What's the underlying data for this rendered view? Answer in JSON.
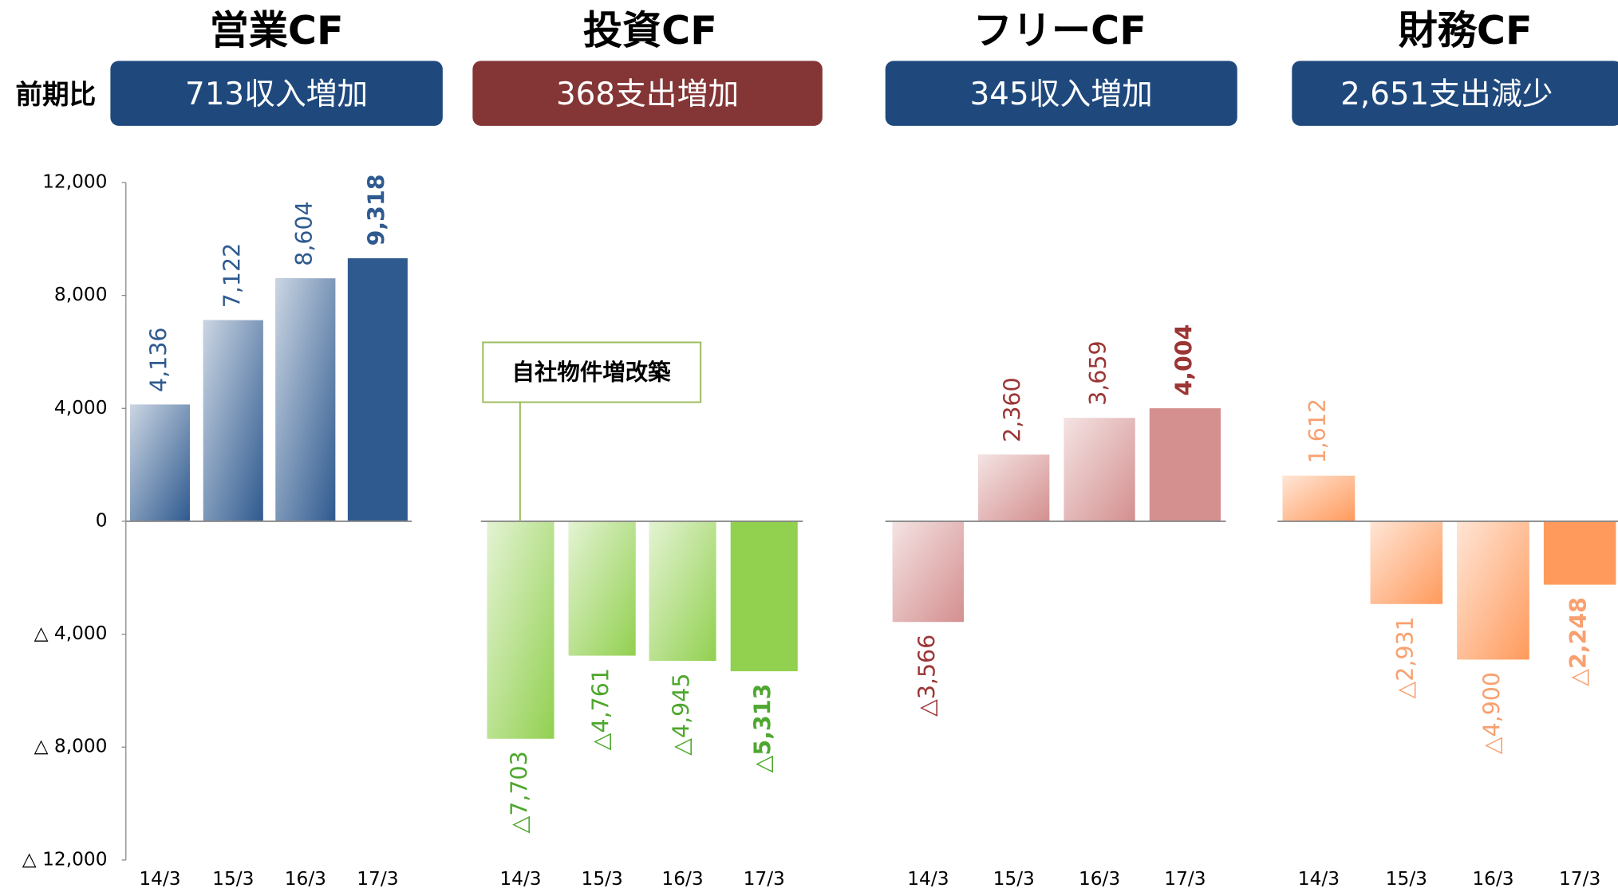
{
  "side_label": "前期比",
  "chart_data": [
    {
      "type": "bar",
      "title": "営業CF",
      "subtitle": "713収入増加",
      "categories": [
        "14/3",
        "15/3",
        "16/3",
        "17/3"
      ],
      "values": [
        4136,
        7122,
        8604,
        9318
      ],
      "value_labels": [
        "4,136",
        "7,122",
        "8,604",
        "9,318"
      ],
      "color": "#2f5a8f",
      "ylim": [
        -12000,
        12000
      ],
      "yticks": [
        {
          "value": 12000,
          "label": "12,000"
        },
        {
          "value": 8000,
          "label": "8,000"
        },
        {
          "value": 4000,
          "label": "4,000"
        },
        0,
        {
          "value": -4000,
          "label": "△ 4,000"
        },
        {
          "value": -8000,
          "label": "△ 8,000"
        },
        {
          "value": -12000,
          "label": "△ 12,000"
        }
      ]
    },
    {
      "type": "bar",
      "title": "投資CF",
      "subtitle": "368支出増加",
      "categories": [
        "14/3",
        "15/3",
        "16/3",
        "17/3"
      ],
      "values": [
        -7703,
        -4761,
        -4945,
        -5313
      ],
      "value_labels": [
        "△7,703",
        "△4,761",
        "△4,945",
        "△5,313"
      ],
      "color": "#92d050",
      "annotation": "自社物件増改築"
    },
    {
      "type": "bar",
      "title": "フリーCF",
      "subtitle": "345収入増加",
      "categories": [
        "14/3",
        "15/3",
        "16/3",
        "17/3"
      ],
      "values": [
        -3566,
        2360,
        3659,
        4004
      ],
      "value_labels": [
        "△3,566",
        "2,360",
        "3,659",
        "4,004"
      ],
      "color": "#d48f8f"
    },
    {
      "type": "bar",
      "title": "財務CF",
      "subtitle": "2,651支出減少",
      "categories": [
        "14/3",
        "15/3",
        "16/3",
        "17/3"
      ],
      "values": [
        1612,
        -2931,
        -4900,
        -2248
      ],
      "value_labels": [
        "1,612",
        "△2,931",
        "△4,900",
        "△2,248"
      ],
      "color": "#ff9a5c"
    }
  ]
}
